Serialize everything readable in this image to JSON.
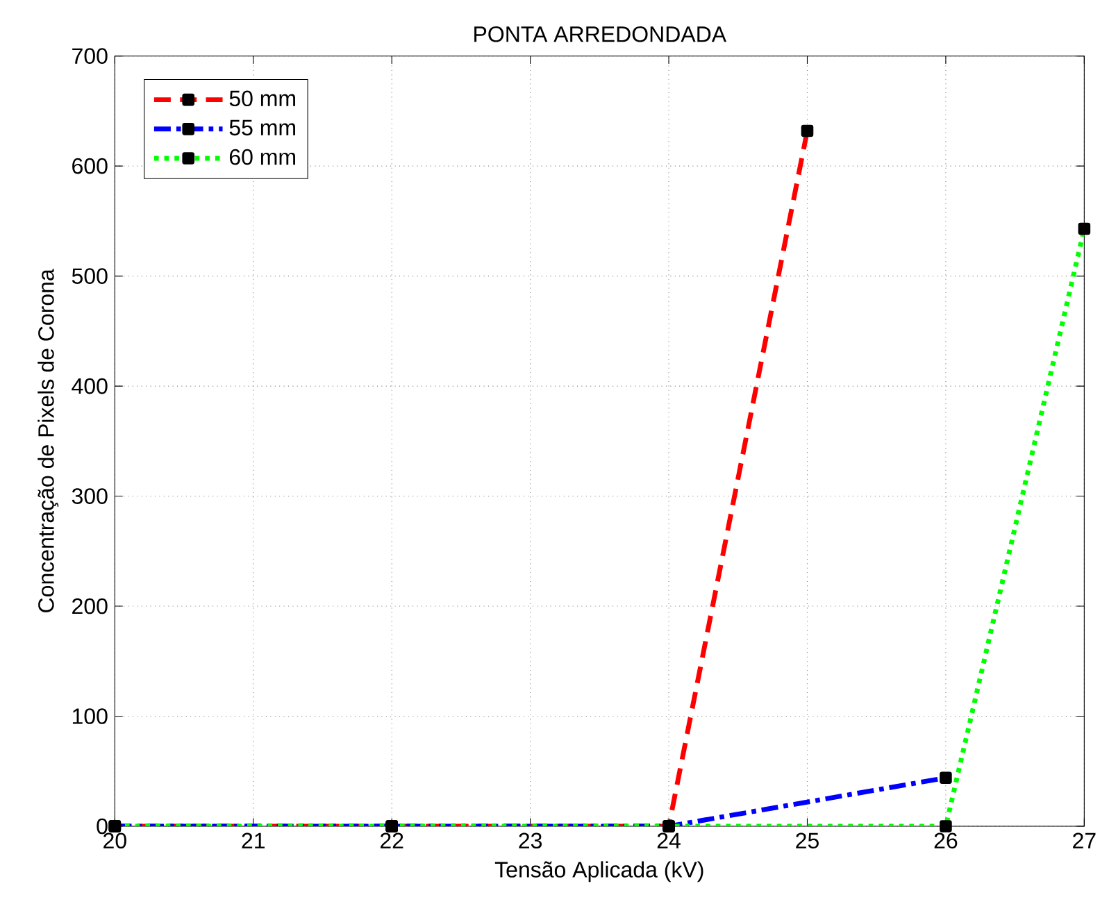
{
  "chart_data": {
    "type": "line",
    "title": "PONTA ARREDONDADA",
    "xlabel": "Tensão Aplicada (kV)",
    "ylabel": "Concentração de Pixels de Corona",
    "xlim": [
      20,
      27
    ],
    "xticks": [
      20,
      21,
      22,
      23,
      24,
      25,
      26,
      27
    ],
    "ylim": [
      0,
      700
    ],
    "yticks": [
      0,
      100,
      200,
      300,
      400,
      500,
      600,
      700
    ],
    "grid": true,
    "legend": "top left",
    "marker": "square",
    "series": [
      {
        "name": "50 mm",
        "color": "#ff0000",
        "line_style": "dashed",
        "x": [
          20,
          22,
          24,
          25
        ],
        "values": [
          0,
          0,
          0,
          632
        ]
      },
      {
        "name": "55 mm",
        "color": "#0000ff",
        "line_style": "dashdot",
        "x": [
          20,
          22,
          24,
          26
        ],
        "values": [
          0,
          0,
          0,
          44
        ]
      },
      {
        "name": "60 mm",
        "color": "#00ff00",
        "line_style": "dotted",
        "x": [
          20,
          22,
          24,
          26,
          27
        ],
        "values": [
          0,
          0,
          0,
          0,
          543
        ]
      }
    ]
  }
}
